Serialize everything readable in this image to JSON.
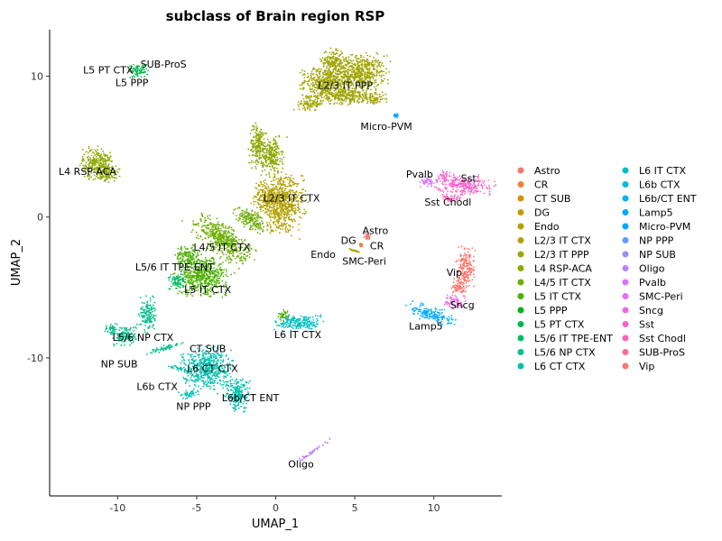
{
  "chart_data": {
    "type": "scatter",
    "title": "subclass of Brain region RSP",
    "xlabel": "UMAP_1",
    "ylabel": "UMAP_2",
    "xlim": [
      -14.3,
      14.3
    ],
    "ylim": [
      -19.8,
      13.3
    ],
    "xticks": [
      -10,
      -5,
      0,
      5,
      10
    ],
    "yticks": [
      -10,
      0,
      10
    ],
    "grid": false,
    "legend_placement": "right",
    "legend_columns": 2,
    "series": [
      {
        "name": "Astro",
        "color": "#F8766D"
      },
      {
        "name": "CR",
        "color": "#EC8239"
      },
      {
        "name": "CT SUB",
        "color": "#DB8E00"
      },
      {
        "name": "DG",
        "color": "#C79800"
      },
      {
        "name": "Endo",
        "color": "#AFA100"
      },
      {
        "name": "L2/3 IT CTX",
        "color": "#B3A000"
      },
      {
        "name": "L2/3 IT PPP",
        "color": "#A0A400"
      },
      {
        "name": "L4 RSP-ACA",
        "color": "#8DA800"
      },
      {
        "name": "L4/5 IT CTX",
        "color": "#6BAE00"
      },
      {
        "name": "L5 IT CTX",
        "color": "#4CAF00"
      },
      {
        "name": "L5 PPP",
        "color": "#00B312"
      },
      {
        "name": "L5 PT CTX",
        "color": "#00B951"
      },
      {
        "name": "L5/6 IT TPE-ENT",
        "color": "#00BC68"
      },
      {
        "name": "L5/6 NP CTX",
        "color": "#00BF8A"
      },
      {
        "name": "L6 CT CTX",
        "color": "#00C0AF"
      },
      {
        "name": "L6 IT CTX",
        "color": "#00BFC4"
      },
      {
        "name": "L6b CTX",
        "color": "#00BBDA"
      },
      {
        "name": "L6b/CT ENT",
        "color": "#00B4EF"
      },
      {
        "name": "Lamp5",
        "color": "#00ABFD"
      },
      {
        "name": "Micro-PVM",
        "color": "#00A5FF"
      },
      {
        "name": "NP PPP",
        "color": "#619CFF"
      },
      {
        "name": "NP SUB",
        "color": "#9590FF"
      },
      {
        "name": "Oligo",
        "color": "#B983FF"
      },
      {
        "name": "Pvalb",
        "color": "#D575FE"
      },
      {
        "name": "SMC-Peri",
        "color": "#E76BF3"
      },
      {
        "name": "Sncg",
        "color": "#F564E3"
      },
      {
        "name": "Sst",
        "color": "#FF61CC"
      },
      {
        "name": "Sst Chodl",
        "color": "#FF62BC"
      },
      {
        "name": "SUB-ProS",
        "color": "#FF67A4"
      },
      {
        "name": "Vip",
        "color": "#F8766D"
      }
    ],
    "clusters": [
      {
        "color": "#A0A400",
        "x": 5.2,
        "y": 10.2,
        "rx": 1.9,
        "ry": 1.4,
        "angle": 0
      },
      {
        "color": "#A0A400",
        "x": 3.1,
        "y": 9.6,
        "rx": 1.5,
        "ry": 1.1,
        "angle": 0
      },
      {
        "color": "#A0A400",
        "x": 4.3,
        "y": 8.6,
        "rx": 2.3,
        "ry": 0.6,
        "angle": 0
      },
      {
        "color": "#A0A400",
        "x": 2.2,
        "y": 8.0,
        "rx": 0.9,
        "ry": 0.4,
        "angle": 0
      },
      {
        "color": "#A0A400",
        "x": 6.2,
        "y": 8.4,
        "rx": 0.8,
        "ry": 0.4,
        "angle": 0
      },
      {
        "color": "#A0A400",
        "x": 3.6,
        "y": 11.1,
        "rx": 0.8,
        "ry": 0.9,
        "angle": 0
      },
      {
        "color": "#00A5FF",
        "x": 7.6,
        "y": 7.2,
        "rx": 0.15,
        "ry": 0.15,
        "angle": 0
      },
      {
        "color": "#00B951",
        "x": -8.7,
        "y": 10.4,
        "rx": 0.7,
        "ry": 0.5,
        "angle": 0
      },
      {
        "color": "#8DA800",
        "x": -11.3,
        "y": 3.8,
        "rx": 1.0,
        "ry": 1.2,
        "angle": 0
      },
      {
        "color": "#8DA800",
        "x": -10.6,
        "y": 3.1,
        "rx": 0.7,
        "ry": 0.6,
        "angle": 0
      },
      {
        "color": "#8DA800",
        "x": -1.1,
        "y": 5.1,
        "rx": 0.6,
        "ry": 1.6,
        "angle": 0
      },
      {
        "color": "#8DA800",
        "x": -0.2,
        "y": 4.3,
        "rx": 0.7,
        "ry": 1.4,
        "angle": 0
      },
      {
        "color": "#B3A000",
        "x": 0.4,
        "y": 0.9,
        "rx": 1.5,
        "ry": 2.0,
        "angle": 0
      },
      {
        "color": "#B3A000",
        "x": -0.6,
        "y": 1.4,
        "rx": 0.8,
        "ry": 1.0,
        "angle": 0
      },
      {
        "color": "#6BAE00",
        "x": -3.3,
        "y": -1.6,
        "rx": 2.2,
        "ry": 1.0,
        "angle": -40
      },
      {
        "color": "#6BAE00",
        "x": -1.6,
        "y": -0.2,
        "rx": 1.2,
        "ry": 0.6,
        "angle": -40
      },
      {
        "color": "#4CAF00",
        "x": -4.6,
        "y": -4.2,
        "rx": 1.7,
        "ry": 1.4,
        "angle": 0
      },
      {
        "color": "#4CAF00",
        "x": -5.6,
        "y": -2.8,
        "rx": 0.8,
        "ry": 0.8,
        "angle": 0
      },
      {
        "color": "#00BC68",
        "x": -6.2,
        "y": -4.6,
        "rx": 0.6,
        "ry": 0.6,
        "angle": 0
      },
      {
        "color": "#00BF8A",
        "x": -8.1,
        "y": -6.9,
        "rx": 0.5,
        "ry": 1.3,
        "angle": 0
      },
      {
        "color": "#00BF8A",
        "x": -9.5,
        "y": -8.4,
        "rx": 0.8,
        "ry": 0.8,
        "angle": 0
      },
      {
        "color": "#00BF8A",
        "x": -10.4,
        "y": -8.0,
        "rx": 0.4,
        "ry": 0.4,
        "angle": 0
      },
      {
        "color": "#00BF8A",
        "x": -7.0,
        "y": -9.3,
        "rx": 1.2,
        "ry": 0.2,
        "angle": 20
      },
      {
        "color": "#00C0AF",
        "x": -4.4,
        "y": -10.7,
        "rx": 1.6,
        "ry": 1.5,
        "angle": 0
      },
      {
        "color": "#00C0AF",
        "x": -2.4,
        "y": -12.6,
        "rx": 0.8,
        "ry": 1.2,
        "angle": 0
      },
      {
        "color": "#00C0AF",
        "x": -5.6,
        "y": -12.6,
        "rx": 0.6,
        "ry": 0.3,
        "angle": 0
      },
      {
        "color": "#00C0AF",
        "x": -6.0,
        "y": -10.8,
        "rx": 0.8,
        "ry": 0.2,
        "angle": -15
      },
      {
        "color": "#00BFC4",
        "x": 1.5,
        "y": -7.5,
        "rx": 1.6,
        "ry": 0.6,
        "angle": 0
      },
      {
        "color": "#4CAF00",
        "x": 0.5,
        "y": -7.0,
        "rx": 0.4,
        "ry": 0.4,
        "angle": 0
      },
      {
        "color": "#F8766D",
        "x": 5.8,
        "y": -1.4,
        "rx": 0.2,
        "ry": 0.25,
        "angle": 0
      },
      {
        "color": "#EC8239",
        "x": 5.4,
        "y": -2.0,
        "rx": 0.1,
        "ry": 0.1,
        "angle": 0
      },
      {
        "color": "#AFA100",
        "x": 5.0,
        "y": -2.4,
        "rx": 0.4,
        "ry": 0.05,
        "angle": -20
      },
      {
        "color": "#D575FE",
        "x": 9.6,
        "y": 2.5,
        "rx": 0.5,
        "ry": 0.4,
        "angle": 0
      },
      {
        "color": "#FF61CC",
        "x": 11.9,
        "y": 2.3,
        "rx": 1.7,
        "ry": 0.7,
        "angle": 0
      },
      {
        "color": "#FF61CC",
        "x": 10.6,
        "y": 2.9,
        "rx": 0.4,
        "ry": 0.4,
        "angle": 0
      },
      {
        "color": "#FF62BC",
        "x": 11.2,
        "y": 1.3,
        "rx": 0.7,
        "ry": 0.3,
        "angle": 0
      },
      {
        "color": "#F8766D",
        "x": 12.0,
        "y": -3.7,
        "rx": 0.6,
        "ry": 1.5,
        "angle": 0
      },
      {
        "color": "#F8766D",
        "x": 11.6,
        "y": -5.0,
        "rx": 0.5,
        "ry": 0.6,
        "angle": 0
      },
      {
        "color": "#F564E3",
        "x": 11.3,
        "y": -6.0,
        "rx": 0.6,
        "ry": 0.5,
        "angle": 0
      },
      {
        "color": "#00ABFD",
        "x": 9.9,
        "y": -6.9,
        "rx": 1.5,
        "ry": 0.5,
        "angle": -20
      },
      {
        "color": "#B983FF",
        "x": 2.4,
        "y": -16.6,
        "rx": 1.5,
        "ry": 0.12,
        "angle": 38
      }
    ],
    "annotations": [
      {
        "text": "L2/3 IT PPP",
        "x": 4.4,
        "y": 9.3
      },
      {
        "text": "Micro-PVM",
        "x": 7.0,
        "y": 6.4
      },
      {
        "text": "L5 PT CTX",
        "x": -10.6,
        "y": 10.4
      },
      {
        "text": "SUB-ProS",
        "x": -7.1,
        "y": 10.8
      },
      {
        "text": "L5 PPP",
        "x": -9.1,
        "y": 9.5
      },
      {
        "text": "L4 RSP-ACA",
        "x": -11.9,
        "y": 3.2
      },
      {
        "text": "L2/3 IT CTX",
        "x": 1.0,
        "y": 1.3
      },
      {
        "text": "Pvalb",
        "x": 9.1,
        "y": 3.0
      },
      {
        "text": "Sst",
        "x": 12.2,
        "y": 2.7
      },
      {
        "text": "Sst Chodl",
        "x": 10.9,
        "y": 1.0
      },
      {
        "text": "Astro",
        "x": 6.3,
        "y": -1.0
      },
      {
        "text": "DG",
        "x": 4.6,
        "y": -1.7
      },
      {
        "text": "CR",
        "x": 6.4,
        "y": -2.1
      },
      {
        "text": "Endo",
        "x": 3.0,
        "y": -2.7
      },
      {
        "text": "SMC-Peri",
        "x": 5.6,
        "y": -3.2
      },
      {
        "text": "L4/5 IT CTX",
        "x": -3.4,
        "y": -2.2
      },
      {
        "text": "L5/6 IT TPE-ENT",
        "x": -6.4,
        "y": -3.6
      },
      {
        "text": "L5 IT CTX",
        "x": -4.3,
        "y": -5.2
      },
      {
        "text": "Vip",
        "x": 11.3,
        "y": -4.0
      },
      {
        "text": "Sncg",
        "x": 11.8,
        "y": -6.3
      },
      {
        "text": "Lamp5",
        "x": 9.5,
        "y": -7.8
      },
      {
        "text": "L6 IT CTX",
        "x": 1.4,
        "y": -8.4
      },
      {
        "text": "L5/6 NP CTX",
        "x": -8.4,
        "y": -8.6
      },
      {
        "text": "CT SUB",
        "x": -4.3,
        "y": -9.4
      },
      {
        "text": "NP SUB",
        "x": -9.9,
        "y": -10.5
      },
      {
        "text": "L6 CT CTX",
        "x": -4.0,
        "y": -10.8
      },
      {
        "text": "L6b CTX",
        "x": -7.5,
        "y": -12.1
      },
      {
        "text": "L6b/CT ENT",
        "x": -1.6,
        "y": -12.9
      },
      {
        "text": "NP PPP",
        "x": -5.2,
        "y": -13.5
      },
      {
        "text": "Oligo",
        "x": 1.6,
        "y": -17.6
      }
    ]
  }
}
